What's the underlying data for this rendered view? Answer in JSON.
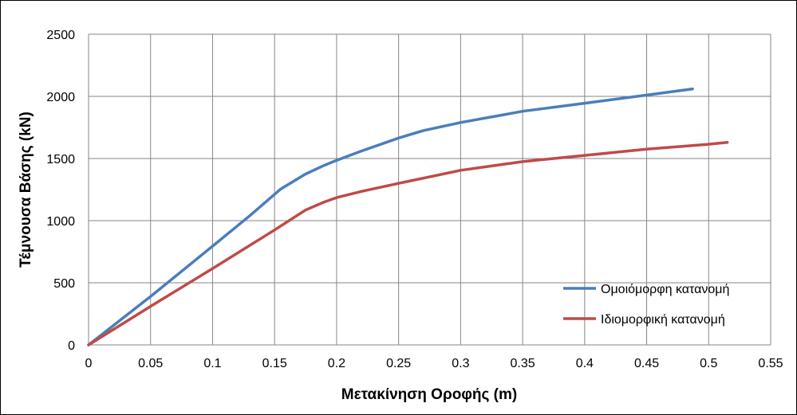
{
  "chart_data": {
    "type": "line",
    "xlabel": "Μετακίνηση Οροφής (m)",
    "ylabel": "Τέμνουσα Βάσης (kN)",
    "xlim": [
      0,
      0.55
    ],
    "ylim": [
      0,
      2500
    ],
    "x_ticks": [
      0,
      0.05,
      0.1,
      0.15,
      0.2,
      0.25,
      0.3,
      0.35,
      0.4,
      0.45,
      0.5,
      0.55
    ],
    "x_tick_labels": [
      "0",
      "0.05",
      "0.1",
      "0.15",
      "0.2",
      "0.25",
      "0.3",
      "0.35",
      "0.4",
      "0.45",
      "0.5",
      "0.55"
    ],
    "y_ticks": [
      0,
      500,
      1000,
      1500,
      2000,
      2500
    ],
    "y_tick_labels": [
      "0",
      "500",
      "1000",
      "1500",
      "2000",
      "2500"
    ],
    "grid": true,
    "legend_position": "bottom-right",
    "series": [
      {
        "name": "Ομοιόμορφη κατανομή",
        "color": "#4a7ebb",
        "x": [
          0,
          0.05,
          0.1,
          0.13,
          0.155,
          0.175,
          0.19,
          0.2,
          0.22,
          0.25,
          0.27,
          0.3,
          0.35,
          0.4,
          0.45,
          0.487
        ],
        "y": [
          0,
          390,
          795,
          1040,
          1255,
          1375,
          1445,
          1485,
          1560,
          1665,
          1725,
          1790,
          1880,
          1945,
          2010,
          2060
        ]
      },
      {
        "name": "Ιδιομορφική κατανομή",
        "color": "#be4b48",
        "x": [
          0,
          0.05,
          0.1,
          0.15,
          0.175,
          0.19,
          0.2,
          0.22,
          0.25,
          0.3,
          0.35,
          0.4,
          0.45,
          0.5,
          0.515
        ],
        "y": [
          0,
          310,
          615,
          925,
          1085,
          1150,
          1185,
          1235,
          1300,
          1405,
          1475,
          1525,
          1575,
          1615,
          1630
        ]
      }
    ]
  }
}
